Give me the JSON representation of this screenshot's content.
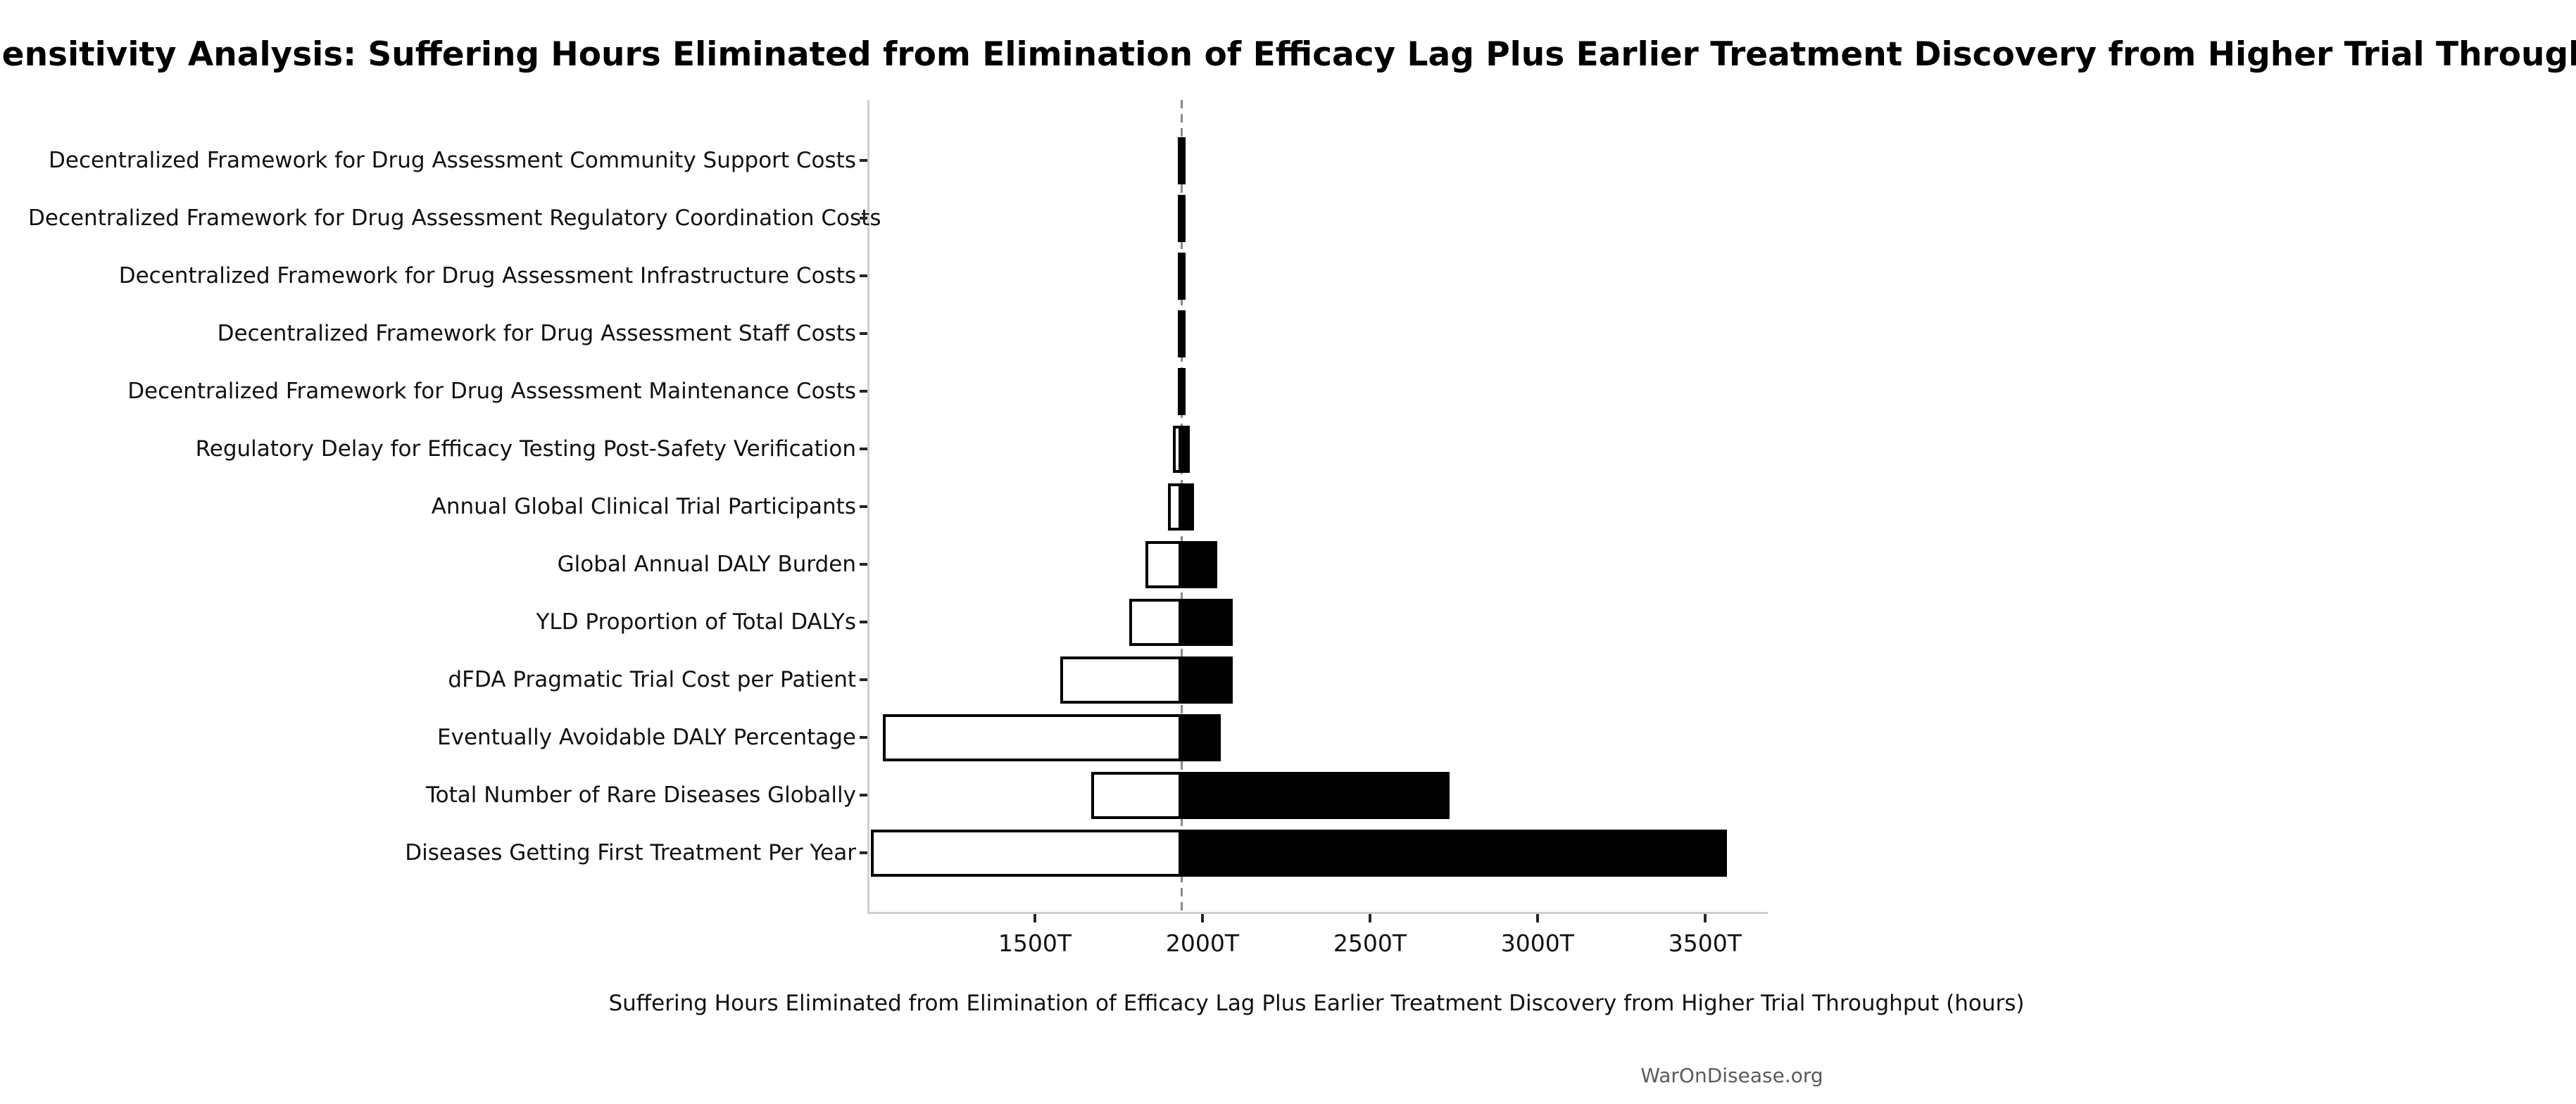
{
  "title": "Sensitivity Analysis: Suffering Hours Eliminated from Elimination of Efficacy Lag Plus Earlier Treatment Discovery from Higher Trial Throughput",
  "footer": "WarOnDisease.org",
  "colors": {
    "background": "#ffffff",
    "text": "#111111",
    "footer_text": "#5a5a5a",
    "spine": "#cfcfcf",
    "baseline_dash": "#8a8a8a",
    "bar_low_fill": "#ffffff",
    "bar_high_fill": "#000000",
    "bar_edge": "#000000"
  },
  "chart_data": {
    "type": "bar",
    "subtype": "tornado-sensitivity",
    "title": "Sensitivity Analysis: Suffering Hours Eliminated from Elimination of Efficacy Lag Plus Earlier Treatment Discovery from Higher Trial Throughput",
    "xlabel": "Suffering Hours Eliminated from Elimination of Efficacy Lag Plus Earlier Treatment Discovery from Higher Trial Throughput (hours)",
    "ylabel": "",
    "unit": "T (trillions of hours)",
    "grid": false,
    "legend": false,
    "baseline_value": 1931,
    "xlim": [
      1000,
      3681
    ],
    "xtick_values": [
      1500,
      2000,
      2500,
      3000,
      3500
    ],
    "xtick_labels": [
      "1500T",
      "2000T",
      "2500T",
      "3000T",
      "3500T"
    ],
    "categories_top_to_bottom": [
      "Decentralized Framework for Drug Assessment Community Support Costs",
      "Decentralized Framework for Drug Assessment Regulatory Coordination Costs",
      "Decentralized Framework for Drug Assessment Infrastructure Costs",
      "Decentralized Framework for Drug Assessment Staff Costs",
      "Decentralized Framework for Drug Assessment Maintenance Costs",
      "Regulatory Delay for Efficacy Testing Post-Safety Verification",
      "Annual Global Clinical Trial Participants",
      "Global Annual DALY Burden",
      "YLD Proportion of Total DALYs",
      "dFDA Pragmatic Trial Cost per Patient",
      "Eventually Avoidable DALY Percentage",
      "Total Number of Rare Diseases Globally",
      "Diseases Getting First Treatment Per Year"
    ],
    "bars": [
      {
        "label": "Decentralized Framework for Drug Assessment Community Support Costs",
        "low": 1925,
        "high": 1939
      },
      {
        "label": "Decentralized Framework for Drug Assessment Regulatory Coordination Costs",
        "low": 1925,
        "high": 1939
      },
      {
        "label": "Decentralized Framework for Drug Assessment Infrastructure Costs",
        "low": 1925,
        "high": 1939
      },
      {
        "label": "Decentralized Framework for Drug Assessment Staff Costs",
        "low": 1925,
        "high": 1939
      },
      {
        "label": "Decentralized Framework for Drug Assessment Maintenance Costs",
        "low": 1925,
        "high": 1939
      },
      {
        "label": "Regulatory Delay for Efficacy Testing Post-Safety Verification",
        "low": 1906,
        "high": 1955
      },
      {
        "label": "Annual Global Clinical Trial Participants",
        "low": 1891,
        "high": 1969
      },
      {
        "label": "Global Annual DALY Burden",
        "low": 1824,
        "high": 2038
      },
      {
        "label": "YLD Proportion of Total DALYs",
        "low": 1775,
        "high": 2085
      },
      {
        "label": "dFDA Pragmatic Trial Cost per Patient",
        "low": 1570,
        "high": 2085
      },
      {
        "label": "Eventually Avoidable DALY Percentage",
        "low": 1039,
        "high": 2048
      },
      {
        "label": "Total Number of Rare Diseases Globally",
        "low": 1661,
        "high": 2731
      },
      {
        "label": "Diseases Getting First Treatment Per Year",
        "low": 1005,
        "high": 3559
      }
    ],
    "bar_style": {
      "low_side": "white with black edge",
      "high_side": "solid black",
      "baseline": "vertical gray dashed line"
    }
  }
}
